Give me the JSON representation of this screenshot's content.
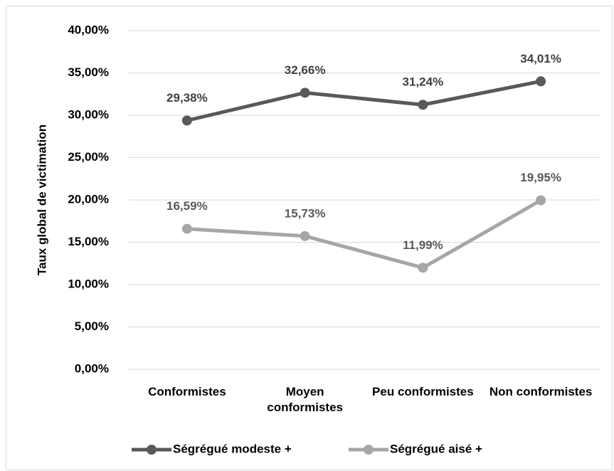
{
  "chart_data": {
    "type": "line",
    "y_label": "Taux global de victimation",
    "categories": [
      "Conformistes",
      "Moyen conformistes",
      "Peu conformistes",
      "Non conformistes"
    ],
    "series": [
      {
        "name": "Ségrégué modeste +",
        "color": "#595959",
        "label_color": "#404040",
        "values": [
          29.38,
          32.66,
          31.24,
          34.01
        ],
        "value_labels": [
          "29,38%",
          "32,66%",
          "31,24%",
          "34,01%"
        ]
      },
      {
        "name": "Ségrégué aisé +",
        "color": "#a6a6a6",
        "label_color": "#595959",
        "values": [
          16.59,
          15.73,
          11.99,
          19.95
        ],
        "value_labels": [
          "16,59%",
          "15,73%",
          "11,99%",
          "19,95%"
        ]
      }
    ],
    "ylim": [
      0,
      40
    ],
    "yticks": [
      {
        "value": 0,
        "label": "0,00%"
      },
      {
        "value": 5,
        "label": "5,00%"
      },
      {
        "value": 10,
        "label": "10,00%"
      },
      {
        "value": 15,
        "label": "15,00%"
      },
      {
        "value": 20,
        "label": "20,00%"
      },
      {
        "value": 25,
        "label": "25,00%"
      },
      {
        "value": 30,
        "label": "30,00%"
      },
      {
        "value": 35,
        "label": "35,00%"
      },
      {
        "value": 40,
        "label": "40,00%"
      }
    ],
    "grid": true,
    "legend": "bottom"
  }
}
